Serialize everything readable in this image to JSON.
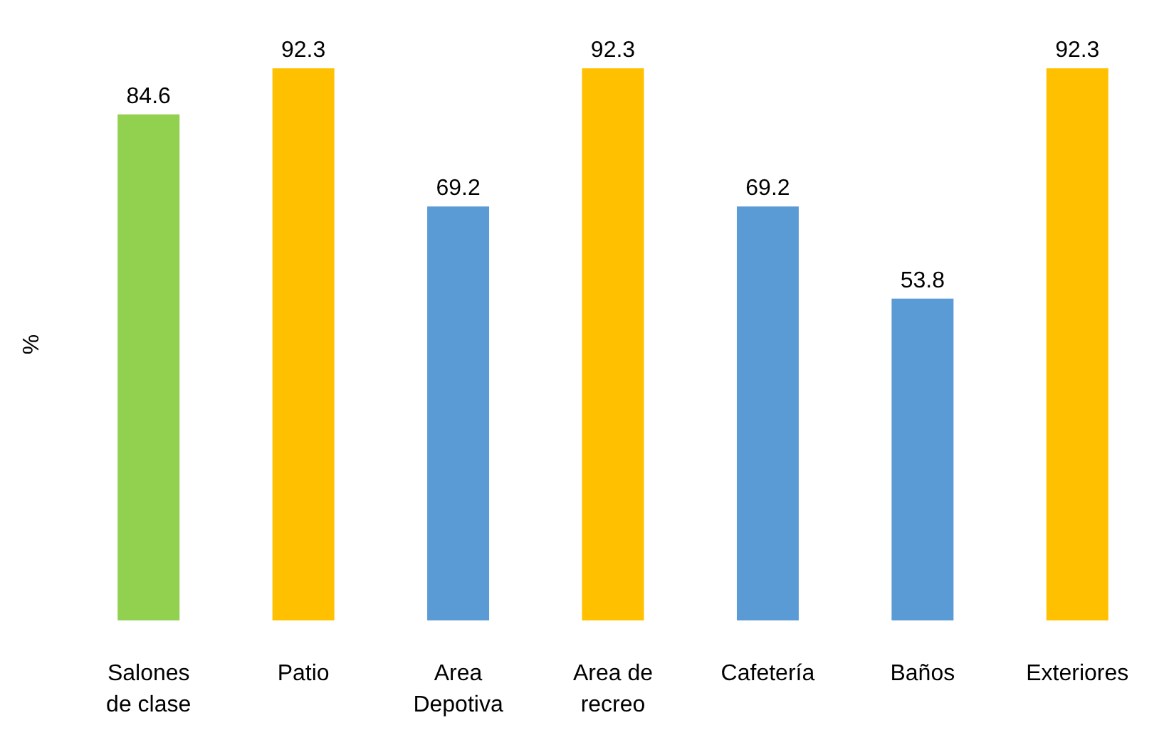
{
  "chart_data": {
    "type": "bar",
    "ylabel": "%",
    "categories": [
      "Salones de clase",
      "Patio",
      "Area Depotiva",
      "Area de recreo",
      "Cafetería",
      "Baños",
      "Exteriores"
    ],
    "values": [
      84.6,
      92.3,
      69.2,
      92.3,
      69.2,
      53.8,
      92.3
    ],
    "colors": [
      "#92d050",
      "#ffc000",
      "#5b9bd5",
      "#ffc000",
      "#5b9bd5",
      "#5b9bd5",
      "#ffc000"
    ],
    "data_labels": true
  }
}
